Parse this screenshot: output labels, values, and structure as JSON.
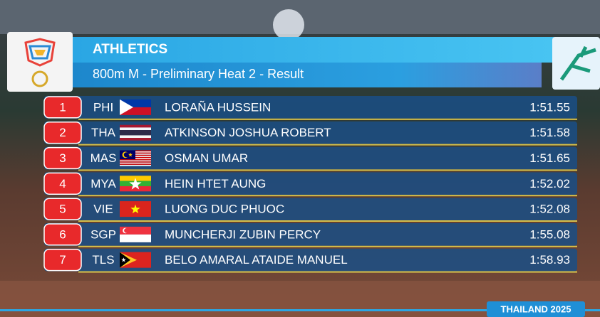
{
  "header": {
    "title": "ATHLETICS",
    "subtitle": "800m M - Preliminary Heat 2 - Result"
  },
  "rows": [
    {
      "rank": 1,
      "country": "PHI",
      "name": "LORAÑA HUSSEIN",
      "time": "1:51.55"
    },
    {
      "rank": 2,
      "country": "THA",
      "name": "ATKINSON JOSHUA ROBERT",
      "time": "1:51.58"
    },
    {
      "rank": 3,
      "country": "MAS",
      "name": "OSMAN UMAR",
      "time": "1:51.65"
    },
    {
      "rank": 4,
      "country": "MYA",
      "name": "HEIN HTET AUNG",
      "time": "1:52.02"
    },
    {
      "rank": 5,
      "country": "VIE",
      "name": "LUONG DUC PHUOC",
      "time": "1:52.08"
    },
    {
      "rank": 6,
      "country": "SGP",
      "name": "MUNCHERJI ZUBIN PERCY",
      "time": "1:55.08"
    },
    {
      "rank": 7,
      "country": "TLS",
      "name": "BELO AMARAL ATAIDE MANUEL",
      "time": "1:58.93"
    }
  ],
  "footer": {
    "label": "THAILAND 2025"
  }
}
